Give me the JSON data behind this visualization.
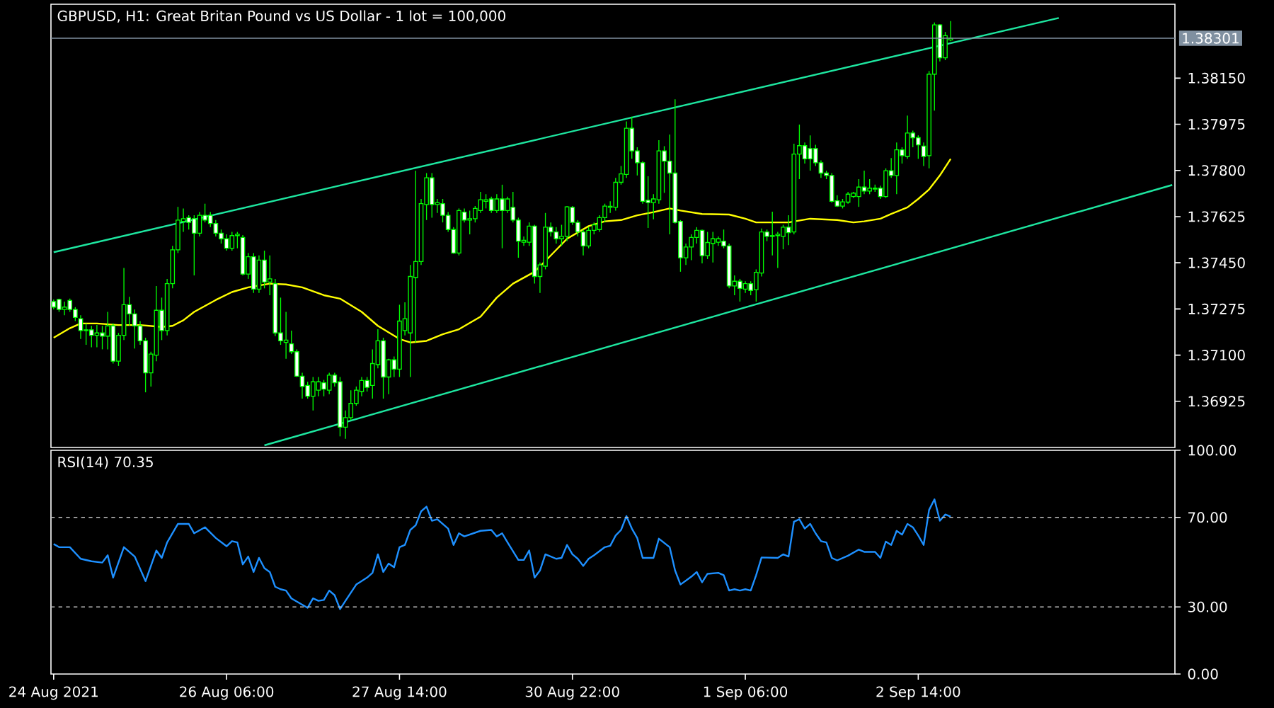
{
  "chart_data": [
    {
      "type": "candlestick",
      "title": "GBPUSD, H1:  Great Britan Pound vs US Dollar - 1 lot = 100,000",
      "color": "#00ff00",
      "tick_labels": "y",
      "categories": [
        null,
        null,
        null,
        null,
        null,
        null,
        null,
        null,
        null,
        null,
        null,
        null,
        null,
        null,
        null,
        null,
        null,
        null,
        null,
        null,
        null,
        null,
        null,
        null,
        null,
        null,
        null,
        null,
        null,
        null,
        null,
        null,
        null,
        null,
        null,
        null,
        null,
        null,
        null,
        null,
        null,
        null,
        null,
        null,
        null,
        null,
        null,
        null,
        null,
        null,
        null,
        null,
        null,
        null,
        null,
        null,
        null,
        null,
        null,
        null,
        null,
        null,
        null,
        null,
        null,
        null,
        null,
        null,
        null,
        null,
        null,
        null,
        null,
        null,
        null,
        null,
        null,
        null,
        null,
        null,
        null,
        null,
        null,
        null,
        null,
        null,
        null,
        null,
        null,
        null,
        null,
        null,
        null,
        null,
        null,
        null,
        null,
        null,
        null,
        null,
        null,
        null,
        null,
        null,
        null,
        null,
        null,
        null,
        null,
        null,
        null,
        null,
        null,
        null,
        null,
        null,
        null,
        null,
        null,
        null,
        null,
        null,
        null,
        null,
        null,
        null,
        null,
        null,
        null,
        null,
        null,
        null,
        null,
        null,
        null,
        null,
        null,
        null,
        null,
        null,
        null,
        null,
        null,
        null,
        null,
        null,
        null,
        null,
        null,
        null,
        null,
        null,
        null,
        null,
        null,
        null,
        null,
        null,
        null,
        null,
        null,
        null,
        null,
        null,
        null,
        null,
        null,
        null,
        null,
        null,
        null,
        null,
        null,
        null,
        null,
        null,
        null,
        null,
        null,
        null,
        null,
        null,
        null,
        null,
        null,
        null,
        null,
        null,
        null,
        null,
        null,
        null,
        null,
        null,
        null,
        null,
        null,
        null,
        null,
        null,
        null,
        null,
        null,
        null,
        null,
        null,
        null,
        null
      ],
      "ylim": [
        1.3675,
        1.3843
      ],
      "yticks": [
        {
          "value": 1.36925,
          "label": "1.36925"
        },
        {
          "value": 1.371,
          "label": "1.37100"
        },
        {
          "value": 1.37275,
          "label": "1.37275"
        },
        {
          "value": 1.3745,
          "label": "1.37450"
        },
        {
          "value": 1.37625,
          "label": "1.37625"
        },
        {
          "value": 1.378,
          "label": "1.37800"
        },
        {
          "value": 1.37975,
          "label": "1.37975"
        },
        {
          "value": 1.3815,
          "label": "1.38150"
        }
      ],
      "ref_lines": [
        {
          "axis": "y",
          "value": 1.38301,
          "label": "1.38301",
          "color": "#8090a0"
        }
      ],
      "series": [
        {
          "type": "line",
          "color": "#1ee6a0",
          "values": [
            1.3749,
            null,
            null,
            null,
            null,
            null,
            null,
            null,
            null,
            null,
            null,
            null,
            null,
            null,
            null,
            null,
            null,
            null,
            null,
            null,
            null,
            null,
            null,
            null,
            null,
            null,
            null,
            null,
            null,
            null,
            null,
            null,
            null,
            null,
            null,
            null,
            null,
            null,
            null,
            null,
            null,
            null,
            null,
            null,
            null,
            null,
            null,
            null,
            null,
            null,
            null,
            null,
            null,
            null,
            null,
            null,
            null,
            null,
            null,
            null,
            null,
            null,
            null,
            null,
            null,
            null,
            null,
            null,
            null,
            null,
            null,
            null,
            null,
            null,
            null,
            null,
            null,
            null,
            null,
            null,
            null,
            null,
            null,
            null,
            null,
            null,
            null,
            null,
            null,
            null,
            null,
            null,
            null,
            null,
            null,
            null,
            null,
            null,
            null,
            null,
            null,
            null,
            null,
            null,
            null,
            null,
            null,
            null,
            null,
            null,
            null,
            null,
            null,
            null,
            null,
            null,
            null,
            null,
            null,
            null,
            null,
            null,
            null,
            null,
            null,
            null,
            null,
            null,
            null,
            null,
            null,
            null,
            null,
            null,
            null,
            null,
            null,
            null,
            null,
            null,
            null,
            null,
            null,
            null,
            null,
            null,
            null,
            null,
            null,
            null,
            null,
            null,
            null,
            null,
            null,
            null,
            null,
            null,
            null,
            null,
            null,
            null,
            null,
            null,
            null,
            null,
            null,
            null,
            null,
            null,
            null,
            null,
            null,
            null,
            null,
            null,
            null,
            null,
            null,
            null,
            null,
            null,
            null,
            null,
            null,
            null,
            1.38378,
            null,
            null,
            null,
            null,
            null,
            null,
            null,
            null,
            null,
            null,
            null,
            null,
            null,
            null,
            null,
            null,
            null,
            null,
            null,
            null,
            null
          ]
        },
        {
          "type": "line",
          "color": "#1ee6a0",
          "values": [
            null,
            null,
            null,
            null,
            null,
            null,
            null,
            null,
            null,
            null,
            null,
            null,
            null,
            null,
            null,
            null,
            null,
            null,
            null,
            null,
            null,
            null,
            null,
            null,
            null,
            null,
            null,
            null,
            null,
            null,
            null,
            null,
            null,
            null,
            null,
            null,
            null,
            null,
            null,
            1.36758,
            null,
            null,
            null,
            null,
            null,
            null,
            null,
            null,
            null,
            null,
            null,
            null,
            null,
            null,
            null,
            null,
            null,
            null,
            null,
            null,
            null,
            null,
            null,
            null,
            null,
            null,
            null,
            null,
            null,
            null,
            null,
            null,
            null,
            null,
            null,
            null,
            null,
            null,
            null,
            null,
            null,
            null,
            null,
            null,
            null,
            null,
            null,
            null,
            null,
            null,
            null,
            null,
            null,
            null,
            null,
            null,
            null,
            null,
            null,
            null,
            null,
            null,
            null,
            null,
            null,
            null,
            null,
            null,
            null,
            null,
            null,
            null,
            null,
            null,
            null,
            null,
            null,
            null,
            null,
            null,
            null,
            null,
            null,
            null,
            null,
            null,
            null,
            null,
            null,
            null,
            null,
            null,
            null,
            null,
            null,
            null,
            null,
            null,
            null,
            null,
            null,
            null,
            null,
            null,
            null,
            null,
            null,
            null,
            null,
            null,
            null,
            null,
            null,
            null,
            null,
            null,
            null,
            null,
            null,
            null,
            null,
            null,
            null,
            null,
            null,
            null,
            null,
            null,
            null,
            null,
            null,
            null,
            null,
            null,
            null,
            null,
            null,
            null,
            null,
            null,
            null,
            null,
            null,
            null,
            null,
            null,
            null,
            null,
            null,
            null,
            null,
            null,
            null,
            null,
            null,
            null,
            null,
            null,
            null,
            null,
            null,
            null,
            null,
            null,
            null,
            null,
            null,
            1.37745
          ]
        },
        {
          "type": "line",
          "color": "#ffff00",
          "values": [
            1.37166,
            null,
            null,
            1.37202,
            null,
            1.3722,
            null,
            null,
            1.3722,
            null,
            null,
            null,
            1.37214,
            null,
            null,
            null,
            1.37214,
            null,
            null,
            null,
            1.37207,
            null,
            1.37211,
            null,
            1.37232,
            null,
            1.37264,
            null,
            null,
            null,
            1.37309,
            null,
            null,
            1.37339,
            null,
            null,
            1.37357,
            null,
            null,
            null,
            1.37371,
            null,
            null,
            1.37368,
            null,
            null,
            1.37357,
            null,
            null,
            null,
            1.37327,
            null,
            null,
            1.37314,
            null,
            null,
            null,
            1.37264,
            null,
            null,
            1.37211,
            null,
            null,
            null,
            1.37161,
            null,
            1.37148,
            null,
            null,
            1.37154,
            null,
            null,
            1.37179,
            null,
            null,
            1.37198,
            null,
            null,
            null,
            1.37246,
            null,
            null,
            1.37318,
            null,
            null,
            1.37371,
            null,
            null,
            null,
            1.37416,
            null,
            null,
            1.37478,
            null,
            null,
            1.37541,
            null,
            null,
            null,
            1.37589,
            null,
            null,
            1.37607,
            null,
            null,
            1.37612,
            null,
            null,
            1.3763,
            null,
            null,
            1.37642,
            null,
            null,
            1.37656,
            null,
            1.37648,
            null,
            null,
            null,
            1.37635,
            null,
            null,
            null,
            null,
            1.37633,
            null,
            null,
            1.37617,
            null,
            1.37603,
            null,
            null,
            null,
            null,
            null,
            1.37603,
            null,
            null,
            null,
            1.37617,
            null,
            null,
            null,
            null,
            1.37612,
            null,
            null,
            1.37603,
            null,
            1.37607,
            null,
            null,
            1.37617,
            null,
            1.37635,
            null,
            null,
            1.3766,
            null,
            1.37692,
            null,
            1.37728,
            null,
            1.37781,
            null,
            1.37844,
            null,
            null,
            null,
            null,
            null,
            null,
            null,
            null,
            null,
            null,
            null,
            null,
            null,
            null,
            null,
            null,
            null,
            null,
            null,
            null,
            null,
            null,
            null,
            null,
            null,
            null,
            null,
            null,
            null,
            null,
            null,
            null,
            null,
            null,
            null,
            null,
            null,
            null,
            null,
            null,
            null
          ]
        }
      ],
      "ohlc": [
        [
          1.37303,
          1.37311,
          1.37273,
          1.37282
        ],
        [
          1.37311,
          1.37314,
          1.37264,
          1.37273
        ],
        [
          1.37273,
          1.37303,
          1.37251,
          1.37282
        ],
        [
          1.37307,
          1.37314,
          1.37264,
          1.37273
        ],
        [
          1.37273,
          1.37282,
          1.37229,
          1.37243
        ],
        [
          1.37238,
          1.37251,
          1.37161,
          1.37193
        ],
        [
          1.37193,
          1.3722,
          1.37139,
          1.37196
        ],
        [
          1.37196,
          1.37211,
          1.3713,
          1.37175
        ],
        [
          1.37175,
          1.37214,
          1.3713,
          1.37184
        ],
        [
          1.37184,
          1.37211,
          1.37122,
          1.37172
        ],
        [
          1.37172,
          1.37264,
          1.37122,
          1.37211
        ],
        [
          1.37211,
          1.3722,
          1.37068,
          1.37077
        ],
        [
          1.37077,
          1.37184,
          1.37059,
          1.37175
        ],
        [
          1.37175,
          1.3743,
          1.37157,
          1.37291
        ],
        [
          1.37291,
          1.37321,
          1.37211,
          1.37256
        ],
        [
          1.37256,
          1.37273,
          1.37125,
          1.37211
        ],
        [
          1.37211,
          1.37229,
          1.37139,
          1.37154
        ],
        [
          1.37154,
          1.37166,
          1.36959,
          1.37033
        ],
        [
          1.37033,
          1.37113,
          1.36981,
          1.37104
        ],
        [
          1.371,
          1.37362,
          1.37077,
          1.3727
        ],
        [
          1.3727,
          1.37318,
          1.37157,
          1.37193
        ],
        [
          1.37193,
          1.37389,
          1.37175,
          1.37371
        ],
        [
          1.37371,
          1.37514,
          1.37353,
          1.37499
        ],
        [
          1.37499,
          1.37662,
          1.37487,
          1.37612
        ],
        [
          1.37607,
          1.37656,
          1.37567,
          1.37617
        ],
        [
          1.37621,
          1.3763,
          1.37576,
          1.37603
        ],
        [
          1.37617,
          1.3763,
          1.37402,
          1.37562
        ],
        [
          1.37562,
          1.37642,
          1.3755,
          1.3763
        ],
        [
          1.3763,
          1.37674,
          1.37603,
          1.37612
        ],
        [
          1.3763,
          1.37642,
          1.37585,
          1.37599
        ],
        [
          1.37599,
          1.37612,
          1.3755,
          1.37562
        ],
        [
          1.37562,
          1.37576,
          1.37523,
          1.37541
        ],
        [
          1.37541,
          1.37558,
          1.37496,
          1.37505
        ],
        [
          1.37505,
          1.37567,
          1.37496,
          1.37553
        ],
        [
          1.37553,
          1.37567,
          1.37505,
          1.37558
        ],
        [
          1.37546,
          1.37555,
          1.37402,
          1.37407
        ],
        [
          1.37407,
          1.37487,
          1.37389,
          1.37473
        ],
        [
          1.37473,
          1.37487,
          1.37336,
          1.3735
        ],
        [
          1.3735,
          1.37478,
          1.37336,
          1.3746
        ],
        [
          1.3746,
          1.37496,
          1.37353,
          1.37377
        ],
        [
          1.37377,
          1.37478,
          1.37327,
          1.37389
        ],
        [
          1.37371,
          1.37389,
          1.37172,
          1.37184
        ],
        [
          1.37184,
          1.37318,
          1.37139,
          1.37154
        ],
        [
          1.37148,
          1.37264,
          1.37086,
          1.37157
        ],
        [
          1.37143,
          1.37193,
          1.37104,
          1.37113
        ],
        [
          1.37113,
          1.37122,
          1.37017,
          1.3702
        ],
        [
          1.3702,
          1.37033,
          1.36935,
          1.36981
        ],
        [
          1.36985,
          1.36999,
          1.36935,
          1.36944
        ],
        [
          1.36944,
          1.37017,
          1.3689,
          1.36999
        ],
        [
          1.36967,
          1.37017,
          1.36944,
          1.36999
        ],
        [
          1.36995,
          1.37006,
          1.36944,
          1.36971
        ],
        [
          1.36967,
          1.37033,
          1.36952,
          1.37024
        ],
        [
          1.37024,
          1.37033,
          1.36981,
          1.36995
        ],
        [
          1.36999,
          1.37017,
          1.36792,
          1.36827
        ],
        [
          1.36827,
          1.3689,
          1.36783,
          1.36863
        ],
        [
          1.36863,
          1.36967,
          1.36854,
          1.36917
        ],
        [
          1.36917,
          1.36981,
          1.36908,
          1.36967
        ],
        [
          1.36962,
          1.37017,
          1.36944,
          1.37004
        ],
        [
          1.37004,
          1.37017,
          1.36962,
          1.36978
        ],
        [
          1.36985,
          1.37122,
          1.36935,
          1.37068
        ],
        [
          1.37064,
          1.37198,
          1.3705,
          1.37154
        ],
        [
          1.37154,
          1.37166,
          1.36935,
          1.37017
        ],
        [
          1.37017,
          1.37086,
          1.36952,
          1.37082
        ],
        [
          1.37082,
          1.37095,
          1.37017,
          1.37047
        ],
        [
          1.37047,
          1.37291,
          1.37017,
          1.37229
        ],
        [
          1.37193,
          1.373,
          1.37175,
          1.37238
        ],
        [
          1.37184,
          1.37442,
          1.37017,
          1.37398
        ],
        [
          1.37394,
          1.37799,
          1.37148,
          1.37455
        ],
        [
          1.37455,
          1.37692,
          1.37442,
          1.37674
        ],
        [
          1.37671,
          1.3779,
          1.37612,
          1.37772
        ],
        [
          1.37772,
          1.3779,
          1.37621,
          1.37671
        ],
        [
          1.37671,
          1.37692,
          1.37639,
          1.37678
        ],
        [
          1.37674,
          1.37692,
          1.37603,
          1.3763
        ],
        [
          1.3763,
          1.37642,
          1.37567,
          1.37576
        ],
        [
          1.37576,
          1.37585,
          1.37484,
          1.37487
        ],
        [
          1.37487,
          1.37656,
          1.37478,
          1.37648
        ],
        [
          1.37642,
          1.37656,
          1.37603,
          1.37612
        ],
        [
          1.37612,
          1.37648,
          1.37558,
          1.37617
        ],
        [
          1.37617,
          1.37665,
          1.37603,
          1.37656
        ],
        [
          1.37648,
          1.37719,
          1.37639,
          1.37689
        ],
        [
          1.37683,
          1.3771,
          1.37656,
          1.37689
        ],
        [
          1.37692,
          1.37701,
          1.37639,
          1.37648
        ],
        [
          1.37648,
          1.3771,
          1.37639,
          1.37692
        ],
        [
          1.37692,
          1.37746,
          1.37505,
          1.37648
        ],
        [
          1.37648,
          1.37701,
          1.37639,
          1.37692
        ],
        [
          1.3766,
          1.37719,
          1.37603,
          1.37612
        ],
        [
          1.37612,
          1.37621,
          1.37469,
          1.37532
        ],
        [
          1.37528,
          1.3755,
          1.37514,
          1.37535
        ],
        [
          1.37528,
          1.37603,
          1.37514,
          1.37589
        ],
        [
          1.37589,
          1.37594,
          1.37371,
          1.37398
        ],
        [
          1.37398,
          1.37451,
          1.37336,
          1.37442
        ],
        [
          1.37437,
          1.37639,
          1.37425,
          1.37585
        ],
        [
          1.37585,
          1.37603,
          1.3755,
          1.37567
        ],
        [
          1.37567,
          1.37585,
          1.37523,
          1.37541
        ],
        [
          1.37541,
          1.37594,
          1.37514,
          1.3755
        ],
        [
          1.3755,
          1.37665,
          1.37532,
          1.37662
        ],
        [
          1.3766,
          1.37665,
          1.37594,
          1.37603
        ],
        [
          1.37603,
          1.37612,
          1.3755,
          1.37567
        ],
        [
          1.37567,
          1.37576,
          1.37478,
          1.37514
        ],
        [
          1.37514,
          1.37585,
          1.37505,
          1.37573
        ],
        [
          1.37573,
          1.37603,
          1.37558,
          1.37594
        ],
        [
          1.37576,
          1.3763,
          1.37567,
          1.37621
        ],
        [
          1.37621,
          1.37674,
          1.37603,
          1.37665
        ],
        [
          1.3766,
          1.37683,
          1.37639,
          1.37664
        ],
        [
          1.3766,
          1.37772,
          1.37648,
          1.37755
        ],
        [
          1.37755,
          1.37817,
          1.37746,
          1.37787
        ],
        [
          1.37785,
          1.37986,
          1.37772,
          1.3796
        ],
        [
          1.3796,
          1.38004,
          1.37844,
          1.37874
        ],
        [
          1.37874,
          1.37888,
          1.37781,
          1.37829
        ],
        [
          1.37829,
          1.37835,
          1.37674,
          1.37683
        ],
        [
          1.37687,
          1.37778,
          1.37582,
          1.37678
        ],
        [
          1.37678,
          1.3771,
          1.37615,
          1.37692
        ],
        [
          1.37689,
          1.37915,
          1.37674,
          1.37874
        ],
        [
          1.37874,
          1.37892,
          1.37715,
          1.37835
        ],
        [
          1.37835,
          1.37936,
          1.37558,
          1.3779
        ],
        [
          1.3779,
          1.3807,
          1.37599,
          1.37603
        ],
        [
          1.37607,
          1.37612,
          1.37416,
          1.37469
        ],
        [
          1.37469,
          1.37523,
          1.37442,
          1.3751
        ],
        [
          1.3751,
          1.37558,
          1.3746,
          1.37546
        ],
        [
          1.37546,
          1.37585,
          1.37523,
          1.37573
        ],
        [
          1.37573,
          1.37576,
          1.37448,
          1.37477
        ],
        [
          1.37477,
          1.37567,
          1.37464,
          1.37527
        ],
        [
          1.37523,
          1.37567,
          1.37451,
          1.37541
        ],
        [
          1.37528,
          1.3755,
          1.37514,
          1.37541
        ],
        [
          1.37532,
          1.37576,
          1.37505,
          1.37514
        ],
        [
          1.37514,
          1.37523,
          1.37353,
          1.37362
        ],
        [
          1.37362,
          1.37402,
          1.37327,
          1.3738
        ],
        [
          1.3738,
          1.37389,
          1.37303,
          1.37353
        ],
        [
          1.3735,
          1.3738,
          1.37336,
          1.37371
        ],
        [
          1.37371,
          1.3738,
          1.37327,
          1.37345
        ],
        [
          1.37348,
          1.37425,
          1.37303,
          1.37414
        ],
        [
          1.37411,
          1.3758,
          1.37398,
          1.37567
        ],
        [
          1.37567,
          1.37576,
          1.37532,
          1.3755
        ],
        [
          1.3755,
          1.37644,
          1.37478,
          1.37553
        ],
        [
          1.37553,
          1.37567,
          1.3743,
          1.37558
        ],
        [
          1.3755,
          1.37594,
          1.37501,
          1.37585
        ],
        [
          1.37585,
          1.3763,
          1.37517,
          1.37564
        ],
        [
          1.37567,
          1.37901,
          1.37558,
          1.37862
        ],
        [
          1.37862,
          1.37974,
          1.37767,
          1.37894
        ],
        [
          1.37894,
          1.37906,
          1.37826,
          1.37844
        ],
        [
          1.37883,
          1.37933,
          1.37799,
          1.37844
        ],
        [
          1.37883,
          1.37897,
          1.37817,
          1.37829
        ],
        [
          1.37829,
          1.37838,
          1.37772,
          1.3779
        ],
        [
          1.3779,
          1.37799,
          1.37767,
          1.37781
        ],
        [
          1.37781,
          1.3779,
          1.37678,
          1.37683
        ],
        [
          1.37685,
          1.37706,
          1.37662,
          1.37665
        ],
        [
          1.37665,
          1.37692,
          1.37656,
          1.37681
        ],
        [
          1.3768,
          1.37719,
          1.37674,
          1.3771
        ],
        [
          1.37701,
          1.37719,
          1.37696,
          1.37714
        ],
        [
          1.37701,
          1.37767,
          1.37662,
          1.37737
        ],
        [
          1.37737,
          1.37799,
          1.3771,
          1.37722
        ],
        [
          1.37722,
          1.37767,
          1.3771,
          1.37733
        ],
        [
          1.37729,
          1.37746,
          1.37719,
          1.37733
        ],
        [
          1.37733,
          1.37742,
          1.37692,
          1.37701
        ],
        [
          1.37701,
          1.37808,
          1.37696,
          1.37799
        ],
        [
          1.37799,
          1.37847,
          1.37772,
          1.37781
        ],
        [
          1.37781,
          1.37906,
          1.3771,
          1.37878
        ],
        [
          1.37878,
          1.37888,
          1.37826,
          1.37856
        ],
        [
          1.37853,
          1.38008,
          1.37844,
          1.37942
        ],
        [
          1.37942,
          1.37951,
          1.37888,
          1.37924
        ],
        [
          1.37924,
          1.37933,
          1.37844,
          1.37897
        ],
        [
          1.37892,
          1.37906,
          1.37817,
          1.37853
        ],
        [
          1.37856,
          1.38177,
          1.37808,
          1.38165
        ],
        [
          1.38165,
          1.38361,
          1.38027,
          1.38352
        ],
        [
          1.38352,
          1.38355,
          1.38213,
          1.38227
        ],
        [
          1.38227,
          1.38325,
          1.38218,
          1.38311
        ],
        [
          1.38295,
          1.38366,
          1.3829,
          1.38301
        ],
        null,
        null,
        null,
        null,
        null,
        null,
        null,
        null,
        null,
        null,
        null,
        null,
        null,
        null,
        null,
        null,
        null,
        null,
        null,
        null,
        null,
        null,
        null,
        null,
        null,
        null,
        null,
        null,
        null,
        null,
        null,
        null,
        null,
        null,
        null,
        null,
        null,
        null,
        null,
        null,
        null
      ]
    },
    {
      "type": "line",
      "title": "RSI(14) 70.35",
      "categories": [
        "24 Aug 2021",
        null,
        null,
        null,
        null,
        null,
        null,
        null,
        null,
        null,
        null,
        null,
        null,
        null,
        null,
        null,
        null,
        null,
        null,
        null,
        null,
        null,
        null,
        null,
        null,
        null,
        null,
        null,
        null,
        null,
        null,
        null,
        "26 Aug 06:00",
        null,
        null,
        null,
        null,
        null,
        null,
        null,
        null,
        null,
        null,
        null,
        null,
        null,
        null,
        null,
        null,
        null,
        null,
        null,
        null,
        null,
        null,
        null,
        null,
        null,
        null,
        null,
        null,
        null,
        null,
        null,
        "27 Aug 14:00",
        null,
        null,
        null,
        null,
        null,
        null,
        null,
        null,
        null,
        null,
        null,
        null,
        null,
        null,
        null,
        null,
        null,
        null,
        null,
        null,
        null,
        null,
        null,
        null,
        null,
        null,
        null,
        null,
        null,
        null,
        null,
        "30 Aug 22:00",
        null,
        null,
        null,
        null,
        null,
        null,
        null,
        null,
        null,
        null,
        null,
        null,
        null,
        null,
        null,
        null,
        null,
        null,
        null,
        null,
        null,
        null,
        null,
        null,
        null,
        null,
        null,
        null,
        null,
        null,
        null,
        "1 Sep 06:00",
        null,
        null,
        null,
        null,
        null,
        null,
        null,
        null,
        null,
        null,
        null,
        null,
        null,
        null,
        null,
        null,
        null,
        null,
        null,
        null,
        null,
        null,
        null,
        null,
        null,
        null,
        null,
        null,
        null,
        null,
        null,
        "2 Sep 14:00",
        null,
        null,
        null,
        null,
        null,
        null,
        null,
        null,
        null,
        null,
        null,
        null,
        null,
        null,
        null,
        null,
        null,
        null,
        null,
        null,
        null,
        null,
        null,
        null,
        null,
        null,
        null,
        null,
        null,
        null,
        null,
        null,
        null,
        null,
        null,
        null,
        null,
        null,
        null,
        null,
        null,
        null,
        null,
        null,
        null,
        null,
        null
      ],
      "ylim": [
        0,
        100
      ],
      "yticks": [
        {
          "value": 0,
          "label": "0.00"
        },
        {
          "value": 30,
          "label": "30.00"
        },
        {
          "value": 70,
          "label": "70.00"
        },
        {
          "value": 100,
          "label": "100.00"
        }
      ],
      "ref_lines": [
        {
          "axis": "y",
          "value": 70,
          "color": "#c0c0c0",
          "line_style": "dashed"
        },
        {
          "axis": "y",
          "value": 30,
          "color": "#c0c0c0",
          "line_style": "dashed"
        }
      ],
      "series": [
        {
          "type": "line",
          "color": "#1e90ff",
          "values": [
            58.1,
            56.7,
            null,
            56.7,
            null,
            51.5,
            null,
            50.4,
            null,
            49.8,
            53.1,
            43.1,
            null,
            56.7,
            null,
            52.5,
            null,
            41.5,
            null,
            55.2,
            51.9,
            58.8,
            null,
            67.1,
            null,
            67.1,
            62.9,
            null,
            65.6,
            null,
            60.8,
            null,
            57.1,
            59.4,
            58.8,
            49.0,
            52.5,
            45.6,
            51.9,
            47.3,
            45.6,
            39.0,
            37.9,
            37.3,
            33.8,
            null,
            31.0,
            29.6,
            33.8,
            32.7,
            33.1,
            37.3,
            35.2,
            29.0,
            32.7,
            null,
            40.0,
            null,
            43.1,
            45.2,
            53.5,
            45.6,
            49.4,
            47.7,
            56.7,
            57.7,
            64.4,
            66.5,
            72.7,
            74.8,
            68.5,
            69.2,
            null,
            65.0,
            57.7,
            62.9,
            61.5,
            null,
            null,
            64.0,
            null,
            64.4,
            61.5,
            62.9,
            58.8,
            null,
            51.0,
            51.0,
            55.2,
            43.1,
            46.3,
            53.5,
            null,
            51.5,
            51.9,
            57.7,
            53.5,
            51.5,
            48.3,
            51.5,
            53.1,
            null,
            56.7,
            57.3,
            61.9,
            64.4,
            70.6,
            65.0,
            60.8,
            51.9,
            null,
            51.9,
            60.5,
            null,
            56.7,
            46.3,
            40.0,
            null,
            43.5,
            45.6,
            41.0,
            44.8,
            null,
            45.2,
            44.2,
            37.3,
            37.9,
            37.3,
            37.9,
            37.3,
            44.2,
            52.1,
            null,
            null,
            51.9,
            53.5,
            52.5,
            68.1,
            69.2,
            65.0,
            67.1,
            62.9,
            59.4,
            58.8,
            51.9,
            50.8,
            null,
            52.9,
            null,
            55.6,
            54.6,
            null,
            54.6,
            51.9,
            59.2,
            57.7,
            64.0,
            62.3,
            67.1,
            65.6,
            61.9,
            57.7,
            73.3,
            78.1,
            68.5,
            71.3,
            70.35,
            null,
            null,
            null,
            null,
            null,
            null,
            null,
            null,
            null,
            null,
            null,
            null,
            null,
            null,
            null,
            null,
            null,
            null,
            null,
            null,
            null,
            null,
            null,
            null,
            null,
            null,
            null,
            null,
            null,
            null,
            null,
            null,
            null,
            null,
            null,
            null,
            null,
            null,
            null,
            null,
            null
          ]
        }
      ]
    }
  ]
}
